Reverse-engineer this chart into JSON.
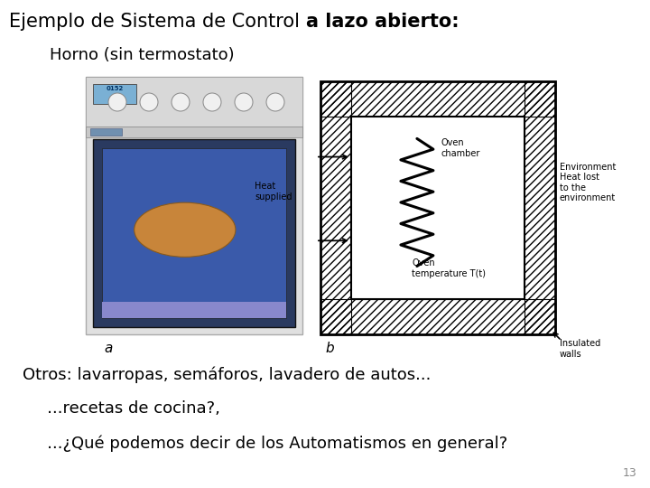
{
  "title_normal": "Ejemplo de Sistema de Control ",
  "title_bold": "a lazo abierto:",
  "subtitle": "Horno (sin termostato)",
  "line1": "Otros: lavarropas, semáforos, lavadero de autos...",
  "line2": "   ...recetas de cocina?,",
  "line3": "   ...¿Qué podemos decir de los Automatismos en general?",
  "page_number": "13",
  "bg_color": "#ffffff",
  "text_color": "#000000",
  "title_fontsize": 15,
  "subtitle_fontsize": 13,
  "body_fontsize": 13,
  "label_fontsize": 7
}
